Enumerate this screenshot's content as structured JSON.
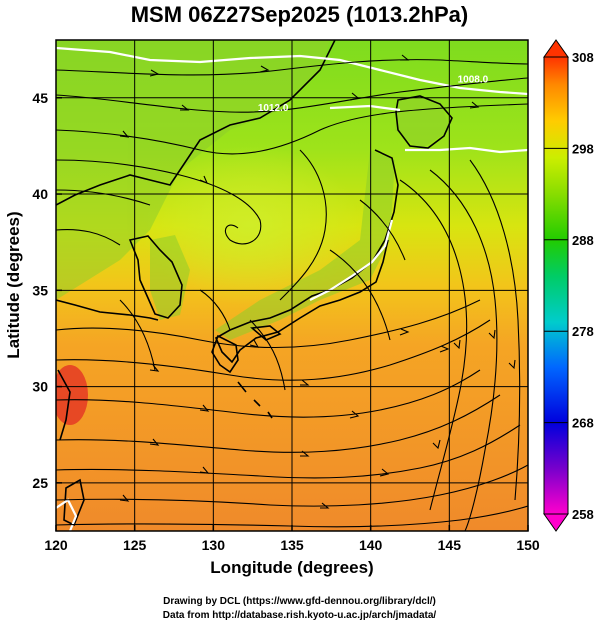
{
  "title": "MSM 06Z27Sep2025 (1013.2hPa)",
  "x_axis": {
    "label": "Longitude (degrees)",
    "ticks": [
      {
        "value": 120,
        "label": "120"
      },
      {
        "value": 125,
        "label": "125"
      },
      {
        "value": 130,
        "label": "130"
      },
      {
        "value": 135,
        "label": "135"
      },
      {
        "value": 140,
        "label": "140"
      },
      {
        "value": 145,
        "label": "145"
      },
      {
        "value": 150,
        "label": "150"
      }
    ]
  },
  "y_axis": {
    "label": "Latitude  (degrees)",
    "ticks": [
      {
        "value": 25,
        "label": "25"
      },
      {
        "value": 30,
        "label": "30"
      },
      {
        "value": 35,
        "label": "35"
      },
      {
        "value": 40,
        "label": "40"
      },
      {
        "value": 45,
        "label": "45"
      }
    ]
  },
  "colorbar": {
    "min": 258,
    "max": 308,
    "labels": [
      {
        "value": 308,
        "label": "308"
      },
      {
        "value": 298,
        "label": "298"
      },
      {
        "value": 288,
        "label": "288"
      },
      {
        "value": 278,
        "label": "278"
      },
      {
        "value": 268,
        "label": "268"
      },
      {
        "value": 258,
        "label": "258"
      }
    ],
    "colors": [
      "#ff00cc",
      "#7700cc",
      "#0000dd",
      "#0066ff",
      "#00cccc",
      "#00cc66",
      "#22cc00",
      "#88dd00",
      "#ccee00",
      "#ffcc00",
      "#ff8800",
      "#ff3300"
    ]
  },
  "contour_labels": [
    {
      "text": "1008.0",
      "lon": 146.5,
      "lat": 45.8
    },
    {
      "text": "1012.0",
      "lon": 133.8,
      "lat": 44.3
    }
  ],
  "credits": {
    "line1": "Drawing by DCL (https://www.gfd-dennou.org/library/dcl/)",
    "line2": "Data from http://database.rish.kyoto-u.ac.jp/arch/jmadata/"
  }
}
